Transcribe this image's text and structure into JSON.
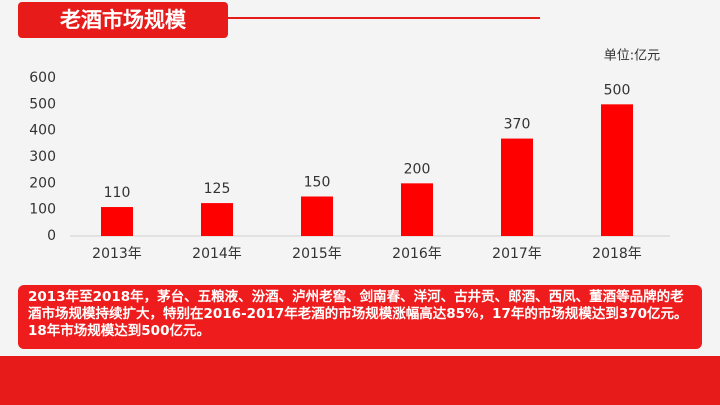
{
  "chart_data": {
    "type": "bar",
    "title": "老酒市场规模",
    "unit": "单位:亿元",
    "categories": [
      "2013年",
      "2014年",
      "2015年",
      "2016年",
      "2017年",
      "2018年"
    ],
    "values": [
      110,
      125,
      150,
      200,
      370,
      500
    ],
    "color": "#ff0000",
    "ylim": [
      0,
      600
    ],
    "yticks": [
      0,
      100,
      200,
      300,
      400,
      500,
      600
    ],
    "grid": false,
    "description": "2013年至2018年，茅台、五粮液、汾酒、泸州老窖、剑南春、洋河、古井贡、郎酒、西凤、董酒等品牌的老酒市场规模持续扩大，特别在2016-2017年老酒的市场规模涨幅高达85%，17年的市场规模达到370亿元。18年市场规模达到500亿元。"
  }
}
